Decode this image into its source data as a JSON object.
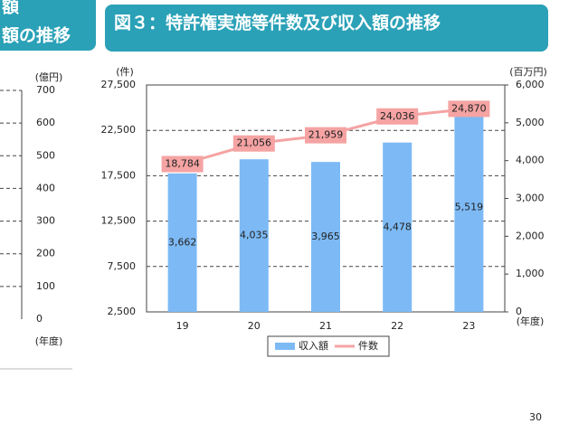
{
  "chart_data": [
    {
      "type": "bar_line",
      "title": "図３：特許権実施等件数及び収入額の推移",
      "y_label": "(件)",
      "y2_label": "(百万円)",
      "x_label": "(年度)",
      "categories": [
        "19",
        "20",
        "21",
        "22",
        "23"
      ],
      "series": [
        {
          "name": "収入額",
          "kind": "bar",
          "axis": "y2",
          "color": "#7dbaf5",
          "values": [
            3662,
            4035,
            3965,
            4478,
            5519
          ],
          "value_labels": [
            "3,662",
            "4,035",
            "3,965",
            "4,478",
            "5,519"
          ]
        },
        {
          "name": "件数",
          "kind": "line",
          "axis": "y",
          "color": "#f5a3a3",
          "values": [
            18784,
            21056,
            21959,
            24036,
            24870
          ],
          "value_labels": [
            "18,784",
            "21,056",
            "21,959",
            "24,036",
            "24,870"
          ]
        }
      ],
      "ylim": [
        2500,
        27500
      ],
      "yticks": [
        {
          "value": 2500,
          "label": "2,500"
        },
        {
          "value": 7500,
          "label": "7,500"
        },
        {
          "value": 12500,
          "label": "12,500"
        },
        {
          "value": 17500,
          "label": "17,500"
        },
        {
          "value": 22500,
          "label": "22,500"
        },
        {
          "value": 27500,
          "label": "27,500"
        }
      ],
      "y2lim": [
        0,
        6000
      ],
      "y2ticks": [
        0,
        {
          "value": 1000,
          "label": "1,000"
        },
        {
          "value": 2000,
          "label": "2,000"
        },
        {
          "value": 3000,
          "label": "3,000"
        },
        {
          "value": 4000,
          "label": "4,000"
        },
        {
          "value": 5000,
          "label": "5,000"
        },
        {
          "value": 6000,
          "label": "6,000"
        }
      ],
      "grid": true
    },
    {
      "type": "axis_only",
      "title": [
        "額",
        "額の推移"
      ],
      "y_label": "(億円)",
      "x_label": "(年度)",
      "ylim": [
        0,
        700
      ],
      "yticks": [
        0,
        100,
        200,
        300,
        400,
        500,
        600,
        700
      ]
    }
  ],
  "page_number": "30"
}
